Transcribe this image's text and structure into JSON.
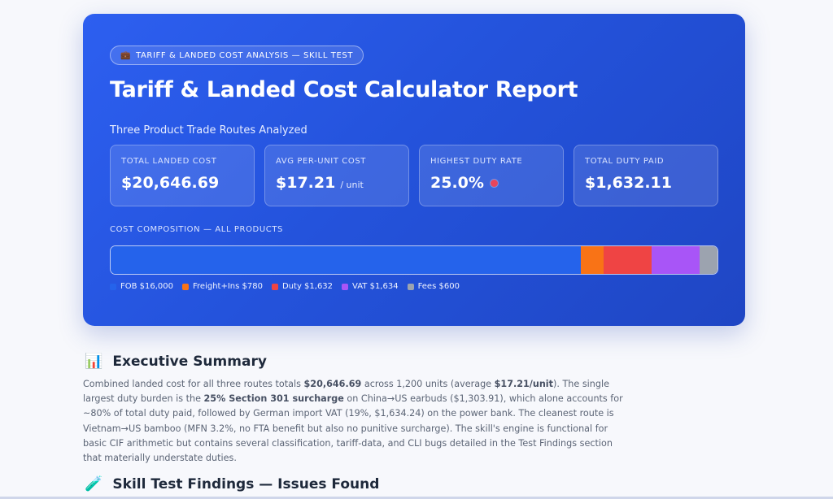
{
  "hero": {
    "badge_icon": "briefcase-icon",
    "badge": "TARIFF & LANDED COST ANALYSIS — SKILL TEST",
    "title": "Tariff & Landed Cost Calculator Report",
    "subtitle": "Three Product Trade Routes Analyzed",
    "stats": [
      {
        "label": "TOTAL LANDED COST",
        "value": "$20,646.69",
        "unit": ""
      },
      {
        "label": "AVG PER-UNIT COST",
        "value": "$17.21",
        "unit": "/ unit"
      },
      {
        "label": "HIGHEST DUTY RATE",
        "value": "25.0%",
        "unit": "",
        "icon": "red-dot-icon"
      },
      {
        "label": "TOTAL DUTY PAID",
        "value": "$1,632.11",
        "unit": ""
      }
    ],
    "composition_label": "COST COMPOSITION — ALL PRODUCTS",
    "composition": [
      {
        "label": "FOB $16,000",
        "value": 16000,
        "color": "#2563eb"
      },
      {
        "label": "Freight+Ins $780",
        "value": 780,
        "color": "#f97316"
      },
      {
        "label": "Duty $1,632",
        "value": 1632,
        "color": "#ef4444"
      },
      {
        "label": "VAT $1,634",
        "value": 1634,
        "color": "#a855f7"
      },
      {
        "label": "Fees $600",
        "value": 600,
        "color": "#9ca3af"
      }
    ]
  },
  "summary": {
    "icon": "bar-chart-icon",
    "title": "Executive Summary",
    "p1": "Combined landed cost for all three routes totals ",
    "b1": "$20,646.69",
    "p2": " across 1,200 units (average ",
    "b2": "$17.21/unit",
    "p3": "). The single largest duty burden is the ",
    "b3": "25% Section 301 surcharge",
    "p4": " on China→US earbuds ($1,303.91), which alone accounts for ~80% of total duty paid, followed by German import VAT (19%, $1,634.24) on the power bank. The cleanest route is Vietnam→US bamboo (MFN 3.2%, no FTA benefit but also no punitive surcharge). The skill's engine is functional for basic CIF arithmetic but contains several classification, tariff-data, and CLI bugs detailed in the Test Findings section that materially understate duties."
  },
  "findings": {
    "icon": "test-tube-icon",
    "title": "Skill Test Findings — Issues Found"
  }
}
